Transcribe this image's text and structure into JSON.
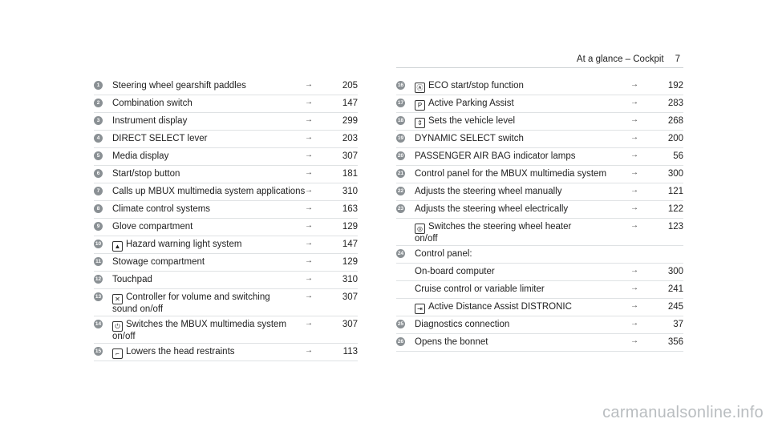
{
  "header": {
    "section": "At a glance – Cockpit",
    "page": "7"
  },
  "arrow_glyph": "→",
  "left": [
    {
      "n": "1",
      "label": "Steering wheel gearshift paddles",
      "page": "205"
    },
    {
      "n": "2",
      "label": "Combination switch",
      "page": "147"
    },
    {
      "n": "3",
      "label": "Instrument display",
      "page": "299"
    },
    {
      "n": "4",
      "label": "DIRECT SELECT lever",
      "page": "203"
    },
    {
      "n": "5",
      "label": "Media display",
      "page": "307"
    },
    {
      "n": "6",
      "label": "Start/stop button",
      "page": "181"
    },
    {
      "n": "7",
      "label": "Calls up MBUX multimedia system applications",
      "page": "310"
    },
    {
      "n": "8",
      "label": "Climate control systems",
      "page": "163"
    },
    {
      "n": "9",
      "label": "Glove compartment",
      "page": "129"
    },
    {
      "n": "10",
      "icon": "warning-triangle-icon",
      "label": "Hazard warning light system",
      "page": "147"
    },
    {
      "n": "11",
      "label": "Stowage compartment",
      "page": "129"
    },
    {
      "n": "12",
      "label": "Touchpad",
      "page": "310"
    },
    {
      "n": "13",
      "icon": "mute-icon",
      "label": "Controller for volume and switching",
      "label2": "sound on/off",
      "page": "307"
    },
    {
      "n": "14",
      "icon": "power-icon",
      "label": "Switches the MBUX multimedia system",
      "label2": "on/off",
      "page": "307"
    },
    {
      "n": "15",
      "icon": "head-restraint-icon",
      "label": "Lowers the head restraints",
      "page": "113"
    }
  ],
  "right": [
    {
      "n": "16",
      "icon": "eco-icon",
      "label": "ECO start/stop function",
      "page": "192"
    },
    {
      "n": "17",
      "icon": "parking-icon",
      "label": "Active Parking Assist",
      "page": "283"
    },
    {
      "n": "18",
      "icon": "vehicle-level-icon",
      "label": "Sets the vehicle level",
      "page": "268"
    },
    {
      "n": "19",
      "label": "DYNAMIC SELECT switch",
      "page": "200"
    },
    {
      "n": "20",
      "label": "PASSENGER AIR BAG indicator lamps",
      "page": "56"
    },
    {
      "n": "21",
      "label": "Control panel for the MBUX multimedia system",
      "page": "300"
    },
    {
      "n": "22",
      "label": "Adjusts the steering wheel manually",
      "page": "121"
    },
    {
      "n": "23",
      "label": "Adjusts the steering wheel electrically",
      "page": "122"
    },
    {
      "n": "",
      "icon": "steering-heater-icon",
      "label": "Switches the steering wheel heater",
      "label2": "on/off",
      "page": "123"
    },
    {
      "n": "24",
      "label": "Control panel:",
      "page": ""
    },
    {
      "n": "",
      "label": "On-board computer",
      "page": "300"
    },
    {
      "n": "",
      "label": "Cruise control or variable limiter",
      "page": "241"
    },
    {
      "n": "",
      "icon": "distronic-icon",
      "label": "Active Distance Assist DISTRONIC",
      "page": "245"
    },
    {
      "n": "25",
      "label": "Diagnostics connection",
      "page": "37"
    },
    {
      "n": "26",
      "label": "Opens the bonnet",
      "page": "356"
    }
  ],
  "footer": {
    "watermark": "carmanualsonline.info"
  }
}
